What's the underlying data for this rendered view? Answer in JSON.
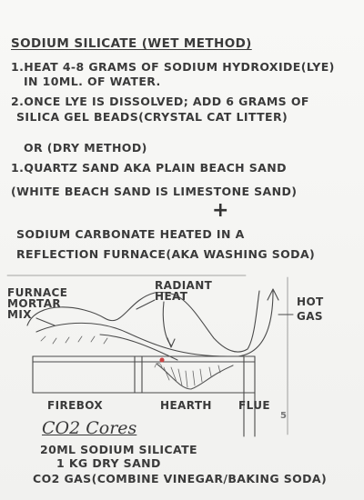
{
  "notes": {
    "title": "SODIUM SILICATE (WET METHOD)",
    "wet_step1_a": "1.HEAT 4-8 GRAMS OF SODIUM HYDROXIDE(LYE)",
    "wet_step1_b": "IN 10ML. OF WATER.",
    "wet_step2_a": "2.ONCE LYE IS DISSOLVED; ADD 6 GRAMS OF",
    "wet_step2_b": "SILICA GEL BEADS(CRYSTAL CAT LITTER)",
    "or_dry": "OR (DRY METHOD)",
    "dry_step1_a": "1.QUARTZ SAND AKA PLAIN BEACH SAND",
    "dry_step1_b": "(WHITE BEACH SAND IS LIMESTONE SAND)",
    "plus": "+",
    "sodium_carb_a": "SODIUM CARBONATE HEATED IN A",
    "sodium_carb_b": "REFLECTION FURNACE(AKA WASHING SODA)"
  },
  "diagram": {
    "furnace_mortar_1": "FURNACE",
    "furnace_mortar_2": "MORTAR",
    "furnace_mortar_3": "MIX",
    "radiant_1": "RADIANT",
    "radiant_2": "HEAT",
    "hot_1": "HOT",
    "hot_2": "GAS",
    "firebox": "FIREBOX",
    "hearth": "HEARTH",
    "flue": "FLUE",
    "page_mark": "5"
  },
  "co2": {
    "heading": "CO2 Cores",
    "line1": "20ML SODIUM SILICATE",
    "line2": "1 KG DRY SAND",
    "line3": "CO2 GAS(COMBINE VINEGAR/BAKING SODA)"
  }
}
